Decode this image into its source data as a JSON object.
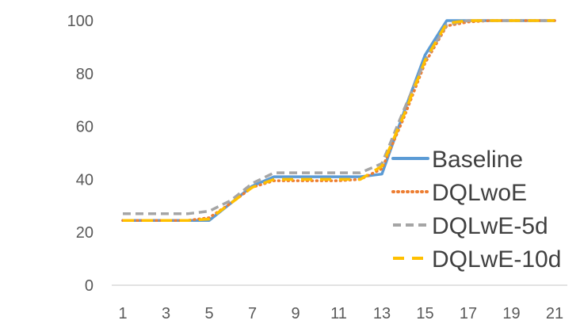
{
  "chart_data": {
    "type": "line",
    "title": "",
    "xlabel": "",
    "ylabel": "",
    "x": [
      1,
      2,
      3,
      4,
      5,
      6,
      7,
      8,
      9,
      10,
      11,
      12,
      13,
      14,
      15,
      16,
      17,
      18,
      19,
      20,
      21
    ],
    "x_tick_labels": [
      "1",
      "3",
      "5",
      "7",
      "9",
      "11",
      "13",
      "15",
      "17",
      "19",
      "21"
    ],
    "y_tick_labels": [
      "0",
      "20",
      "40",
      "60",
      "80",
      "100"
    ],
    "ylim": [
      0,
      100
    ],
    "grid": "horizontal baseline only",
    "legend_position": "right",
    "series": [
      {
        "name": "Baseline",
        "color": "#5B9BD5",
        "dash": "solid",
        "values": [
          24.5,
          24.5,
          24.5,
          24.5,
          24.5,
          31,
          37.5,
          41,
          41,
          41,
          41,
          41,
          42,
          65,
          87,
          100,
          100,
          100,
          100,
          100,
          100
        ]
      },
      {
        "name": "DQLwoE",
        "color": "#ED7D31",
        "dash": "dotted",
        "values": [
          24.5,
          24.5,
          24.5,
          24.5,
          25.5,
          31,
          37,
          39.5,
          39.5,
          39.5,
          39.5,
          40,
          44,
          63,
          84,
          98,
          99.5,
          100,
          100,
          100,
          100
        ]
      },
      {
        "name": "DQLwE-5d",
        "color": "#A5A5A5",
        "dash": "dashed",
        "values": [
          27,
          27,
          27,
          27,
          28,
          32,
          38.5,
          42.5,
          42.5,
          42.5,
          42.5,
          42.5,
          46,
          66,
          85,
          98.5,
          100,
          100,
          100,
          100,
          100
        ]
      },
      {
        "name": "DQLwE-10d",
        "color": "#FFC000",
        "dash": "dashed-long",
        "values": [
          24.5,
          24.5,
          24.5,
          24.5,
          25,
          31,
          37,
          40,
          40,
          40,
          40,
          40,
          45,
          64,
          85,
          99,
          100,
          100,
          100,
          100,
          100
        ]
      }
    ]
  }
}
